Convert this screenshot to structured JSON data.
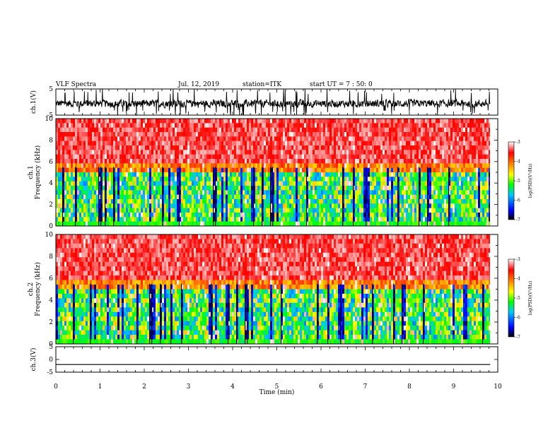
{
  "header": {
    "title": "VLF Spectra",
    "date": "Jul. 12, 2019",
    "station": "station=ITK",
    "start": "start UT = 7 : 50: 0"
  },
  "chart_data": [
    {
      "type": "line",
      "panel": "ch1-waveform",
      "ylabel": "ch.1(V)",
      "ylim": [
        -5,
        5
      ],
      "yticks": [
        {
          "v": 5,
          "t": "5"
        },
        {
          "v": -5,
          "t": "-5"
        }
      ],
      "xlim": [
        0,
        10
      ],
      "x_end": 9.83,
      "trace": {
        "description_values": "noisy waveform mostly between -2 and 1 V with spikes to +/-5 V",
        "color": "#000000"
      }
    },
    {
      "type": "heatmap",
      "panel": "ch1-spectrogram",
      "ylabel": "ch.1\nFrequency  (kHz)",
      "ylim": [
        0,
        10
      ],
      "yticks": [
        "0",
        "2",
        "4",
        "6",
        "8",
        "10"
      ],
      "xlim": [
        0,
        10
      ],
      "x_end": 9.83,
      "colorbar": {
        "label": "log(PSD)(V²/Hz)",
        "range": [
          -7,
          -3
        ],
        "ticks": [
          "-3",
          "-4",
          "-5",
          "-6",
          "-7"
        ]
      }
    },
    {
      "type": "heatmap",
      "panel": "ch2-spectrogram",
      "ylabel": "ch.2\nFrequency  (kHz)",
      "ylim": [
        0,
        10
      ],
      "yticks": [
        "0",
        "2",
        "4",
        "6",
        "8",
        "10"
      ],
      "xlim": [
        0,
        10
      ],
      "x_end": 9.83,
      "colorbar": {
        "label": "log(PSD)(V²/Hz)",
        "range": [
          -7,
          -3
        ],
        "ticks": [
          "-3",
          "-4",
          "-5",
          "-6",
          "-7"
        ]
      }
    },
    {
      "type": "line",
      "panel": "ch3-waveform",
      "ylabel": "ch.3(V)",
      "ylim": [
        -5,
        5
      ],
      "yticks": [
        {
          "v": 5,
          "t": "5"
        },
        {
          "v": 0,
          "t": "0"
        },
        {
          "v": -5,
          "t": "-5"
        }
      ],
      "xlim": [
        0,
        10
      ],
      "x_end": 9.83,
      "trace": {
        "level": -2,
        "color": "#000000"
      }
    }
  ],
  "xaxis": {
    "label": "Time  (min)",
    "ticks": [
      "0",
      "1",
      "2",
      "3",
      "4",
      "5",
      "6",
      "7",
      "8",
      "9",
      "10"
    ]
  },
  "colorscale": [
    "#000000",
    "#0000ff",
    "#00c8ff",
    "#00ff00",
    "#ffff00",
    "#ff8000",
    "#ff0000",
    "#ffffff"
  ]
}
